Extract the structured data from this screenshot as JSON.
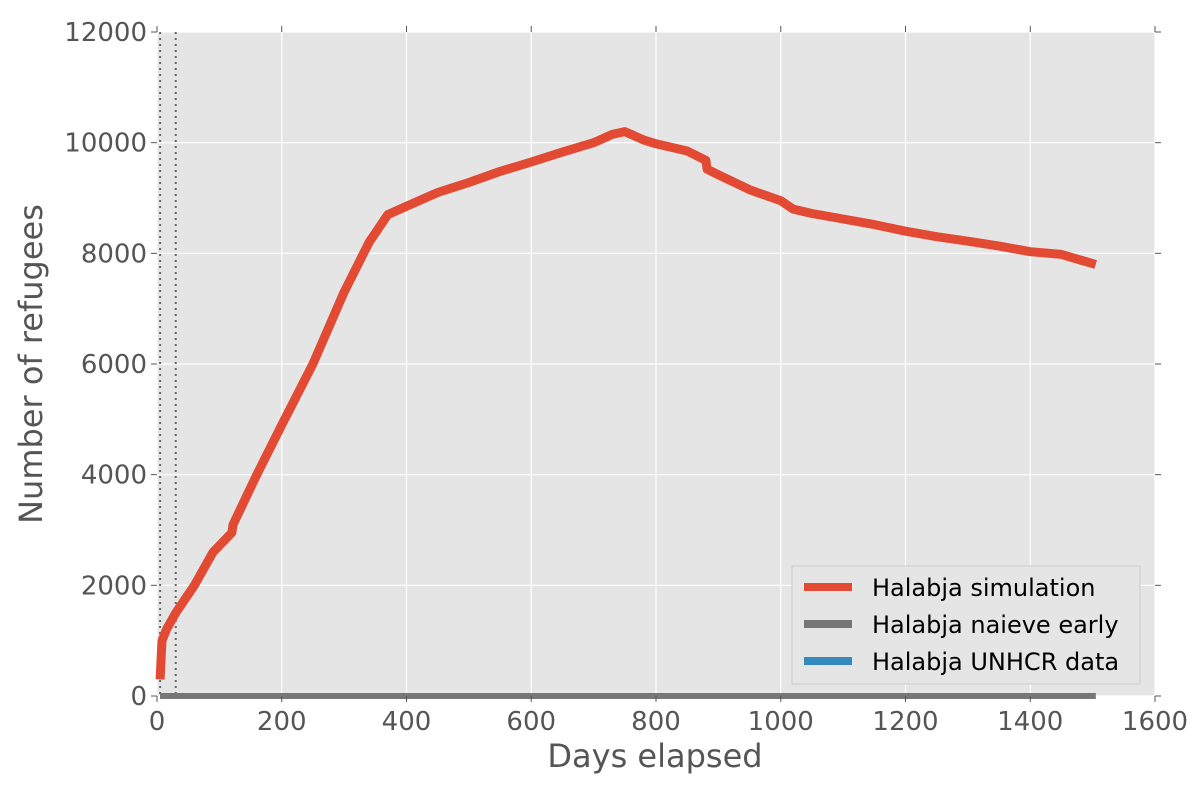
{
  "chart_data": {
    "type": "line",
    "xlabel": "Days elapsed",
    "ylabel": "Number of refugees",
    "xlim": [
      0,
      1600
    ],
    "ylim": [
      0,
      12000
    ],
    "x_ticks": [
      "0",
      "200",
      "400",
      "600",
      "800",
      "1000",
      "1200",
      "1400",
      "1600"
    ],
    "y_ticks": [
      "0",
      "2000",
      "4000",
      "6000",
      "8000",
      "10000",
      "12000"
    ],
    "grid": true,
    "legend_position": "lower-right",
    "vertical_markers": [
      5,
      30
    ],
    "series": [
      {
        "name": "Halabja simulation",
        "color": "#e24a33",
        "x": [
          5,
          8,
          15,
          30,
          60,
          90,
          120,
          122,
          160,
          200,
          250,
          300,
          340,
          370,
          400,
          450,
          500,
          550,
          600,
          650,
          700,
          730,
          750,
          780,
          800,
          850,
          880,
          882,
          900,
          950,
          1000,
          1020,
          1050,
          1100,
          1150,
          1200,
          1250,
          1300,
          1350,
          1400,
          1450,
          1480,
          1505
        ],
        "y": [
          300,
          1000,
          1200,
          1500,
          2000,
          2600,
          2950,
          3100,
          4000,
          4900,
          6000,
          7300,
          8200,
          8700,
          8850,
          9100,
          9280,
          9480,
          9650,
          9830,
          10000,
          10150,
          10200,
          10050,
          9980,
          9850,
          9680,
          9520,
          9420,
          9150,
          8950,
          8800,
          8720,
          8620,
          8520,
          8400,
          8300,
          8220,
          8130,
          8030,
          7980,
          7880,
          7800
        ]
      },
      {
        "name": "Halabja naieve early",
        "color": "#777777",
        "x": [
          5,
          1505
        ],
        "y": [
          0,
          0
        ]
      },
      {
        "name": "Halabja UNHCR data",
        "color": "#348abd",
        "x": [
          5,
          1505
        ],
        "y": [
          0,
          0
        ]
      }
    ]
  }
}
